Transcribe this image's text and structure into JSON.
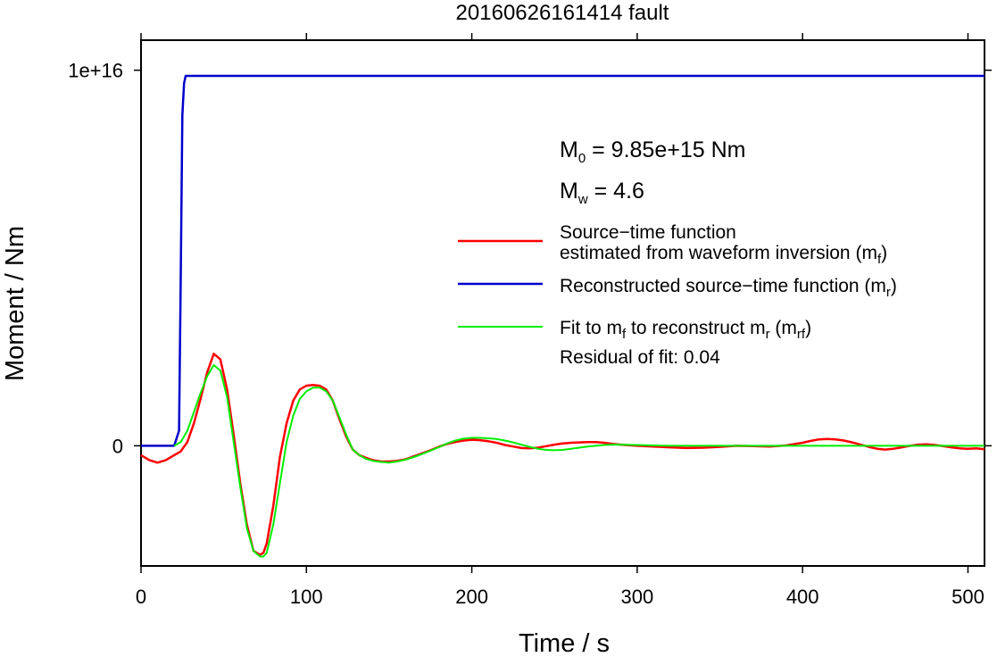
{
  "chart_data": {
    "type": "line",
    "title": "20160626161414 fault",
    "xlabel": "Time / s",
    "ylabel": "Moment / Nm",
    "xlim": [
      0,
      510
    ],
    "ylim": [
      -3200000000000000.0,
      1.08e+16
    ],
    "x_ticks": [
      0,
      100,
      200,
      300,
      400,
      500
    ],
    "x_tick_labels": [
      "0",
      "100",
      "200",
      "300",
      "400",
      "500"
    ],
    "y_ticks": [
      0,
      1e+16
    ],
    "y_tick_labels": [
      "0",
      "1e+16"
    ],
    "grid": false,
    "legend_position": "right",
    "annotations": {
      "m0_main": "M",
      "m0_sub": "0",
      "m0_rest": " = 9.85e+15 Nm",
      "mw_main": "M",
      "mw_sub": "w",
      "mw_rest": " = 4.6",
      "residual": "Residual of fit: 0.04"
    },
    "legend": [
      {
        "color": "#ff0000",
        "line1": "Source−time function",
        "line2": "estimated from waveform inversion (m",
        "line2_sub": "f",
        "line2_end": ")"
      },
      {
        "color": "#0000cc",
        "line1": "Reconstructed source−time function (m",
        "line1_sub": "r",
        "line1_end": ")"
      },
      {
        "color": "#00ee00",
        "p1": "Fit to m",
        "s1": "f",
        "p2": " to reconstruct m",
        "s2": "r",
        "p3": " (m",
        "s3": "rf",
        "p4": ")"
      }
    ],
    "series": [
      {
        "color": "#0000cc",
        "x": [
          0,
          20,
          23,
          24,
          25,
          26,
          27,
          510
        ],
        "y": [
          0,
          0,
          400000000000000.0,
          4500000000000000.0,
          8800000000000000.0,
          9650000000000000.0,
          9850000000000000.0,
          9850000000000000.0
        ]
      },
      {
        "color": "#ff0000",
        "x": [
          0,
          5,
          10,
          15,
          20,
          24,
          28,
          32,
          36,
          40,
          44,
          48,
          52,
          56,
          60,
          64,
          68,
          72,
          74,
          76,
          80,
          84,
          88,
          92,
          96,
          100,
          104,
          108,
          112,
          116,
          120,
          124,
          128,
          132,
          136,
          140,
          145,
          150,
          155,
          160,
          165,
          170,
          175,
          180,
          185,
          190,
          195,
          200,
          205,
          210,
          215,
          220,
          225,
          230,
          235,
          240,
          245,
          250,
          255,
          260,
          265,
          270,
          275,
          280,
          285,
          290,
          300,
          310,
          320,
          330,
          340,
          350,
          360,
          370,
          380,
          390,
          400,
          405,
          410,
          415,
          420,
          425,
          430,
          435,
          440,
          445,
          450,
          455,
          460,
          465,
          470,
          475,
          480,
          485,
          490,
          495,
          500,
          505,
          510
        ],
        "y": [
          -250000000000000.0,
          -380000000000000.0,
          -450000000000000.0,
          -380000000000000.0,
          -250000000000000.0,
          -150000000000000.0,
          100000000000000.0,
          600000000000000.0,
          1250000000000000.0,
          1950000000000000.0,
          2450000000000000.0,
          2300000000000000.0,
          1500000000000000.0,
          300000000000000.0,
          -1000000000000000.0,
          -2100000000000000.0,
          -2800000000000000.0,
          -2900000000000000.0,
          -2850000000000000.0,
          -2600000000000000.0,
          -1600000000000000.0,
          -300000000000000.0,
          600000000000000.0,
          1200000000000000.0,
          1500000000000000.0,
          1600000000000000.0,
          1620000000000000.0,
          1600000000000000.0,
          1500000000000000.0,
          1200000000000000.0,
          700000000000000.0,
          250000000000000.0,
          -100000000000000.0,
          -250000000000000.0,
          -320000000000000.0,
          -380000000000000.0,
          -420000000000000.0,
          -420000000000000.0,
          -400000000000000.0,
          -360000000000000.0,
          -280000000000000.0,
          -200000000000000.0,
          -120000000000000.0,
          -30000000000000.0,
          50000000000000.0,
          100000000000000.0,
          140000000000000.0,
          160000000000000.0,
          150000000000000.0,
          120000000000000.0,
          80000000000000.0,
          20000000000000.0,
          -20000000000000.0,
          -60000000000000.0,
          -70000000000000.0,
          -50000000000000.0,
          -10000000000000.0,
          30000000000000.0,
          60000000000000.0,
          80000000000000.0,
          90000000000000.0,
          100000000000000.0,
          100000000000000.0,
          80000000000000.0,
          50000000000000.0,
          30000000000000.0,
          0,
          -20000000000000.0,
          -40000000000000.0,
          -60000000000000.0,
          -50000000000000.0,
          -30000000000000.0,
          0,
          -10000000000000.0,
          -20000000000000.0,
          10000000000000.0,
          80000000000000.0,
          130000000000000.0,
          170000000000000.0,
          180000000000000.0,
          170000000000000.0,
          140000000000000.0,
          90000000000000.0,
          30000000000000.0,
          -30000000000000.0,
          -80000000000000.0,
          -100000000000000.0,
          -80000000000000.0,
          -40000000000000.0,
          0,
          30000000000000.0,
          40000000000000.0,
          20000000000000.0,
          -10000000000000.0,
          -40000000000000.0,
          -70000000000000.0,
          -80000000000000.0,
          -70000000000000.0,
          -90000000000000.0
        ]
      },
      {
        "color": "#00ee00",
        "x": [
          20,
          24,
          28,
          32,
          36,
          40,
          44,
          48,
          52,
          56,
          60,
          64,
          68,
          72,
          74,
          76,
          80,
          84,
          88,
          92,
          96,
          100,
          104,
          108,
          112,
          116,
          120,
          124,
          128,
          132,
          136,
          140,
          145,
          150,
          155,
          160,
          165,
          170,
          175,
          180,
          185,
          190,
          195,
          200,
          205,
          210,
          215,
          220,
          225,
          230,
          235,
          240,
          245,
          250,
          255,
          260,
          265,
          270,
          275,
          280,
          285,
          290,
          300,
          310,
          320,
          330,
          340,
          350,
          360,
          370,
          380,
          390,
          400,
          410,
          420,
          430,
          440,
          450,
          460,
          470,
          480,
          490,
          500,
          510
        ],
        "y": [
          0,
          100000000000000.0,
          400000000000000.0,
          900000000000000.0,
          1400000000000000.0,
          1850000000000000.0,
          2150000000000000.0,
          2000000000000000.0,
          1300000000000000.0,
          100000000000000.0,
          -1100000000000000.0,
          -2200000000000000.0,
          -2800000000000000.0,
          -2950000000000000.0,
          -2950000000000000.0,
          -2850000000000000.0,
          -2100000000000000.0,
          -1000000000000000.0,
          100000000000000.0,
          800000000000000.0,
          1250000000000000.0,
          1450000000000000.0,
          1550000000000000.0,
          1550000000000000.0,
          1450000000000000.0,
          1200000000000000.0,
          750000000000000.0,
          300000000000000.0,
          -100000000000000.0,
          -250000000000000.0,
          -350000000000000.0,
          -400000000000000.0,
          -430000000000000.0,
          -450000000000000.0,
          -420000000000000.0,
          -370000000000000.0,
          -300000000000000.0,
          -220000000000000.0,
          -130000000000000.0,
          -40000000000000.0,
          60000000000000.0,
          140000000000000.0,
          190000000000000.0,
          210000000000000.0,
          210000000000000.0,
          200000000000000.0,
          180000000000000.0,
          140000000000000.0,
          90000000000000.0,
          30000000000000.0,
          -30000000000000.0,
          -80000000000000.0,
          -110000000000000.0,
          -120000000000000.0,
          -110000000000000.0,
          -80000000000000.0,
          -50000000000000.0,
          -20000000000000.0,
          0,
          20000000000000.0,
          30000000000000.0,
          30000000000000.0,
          20000000000000.0,
          10000000000000.0,
          0,
          0,
          0,
          0,
          0,
          0,
          0,
          0,
          0,
          0,
          0,
          0,
          0,
          0,
          0,
          0,
          0,
          0,
          0,
          0
        ]
      }
    ]
  }
}
